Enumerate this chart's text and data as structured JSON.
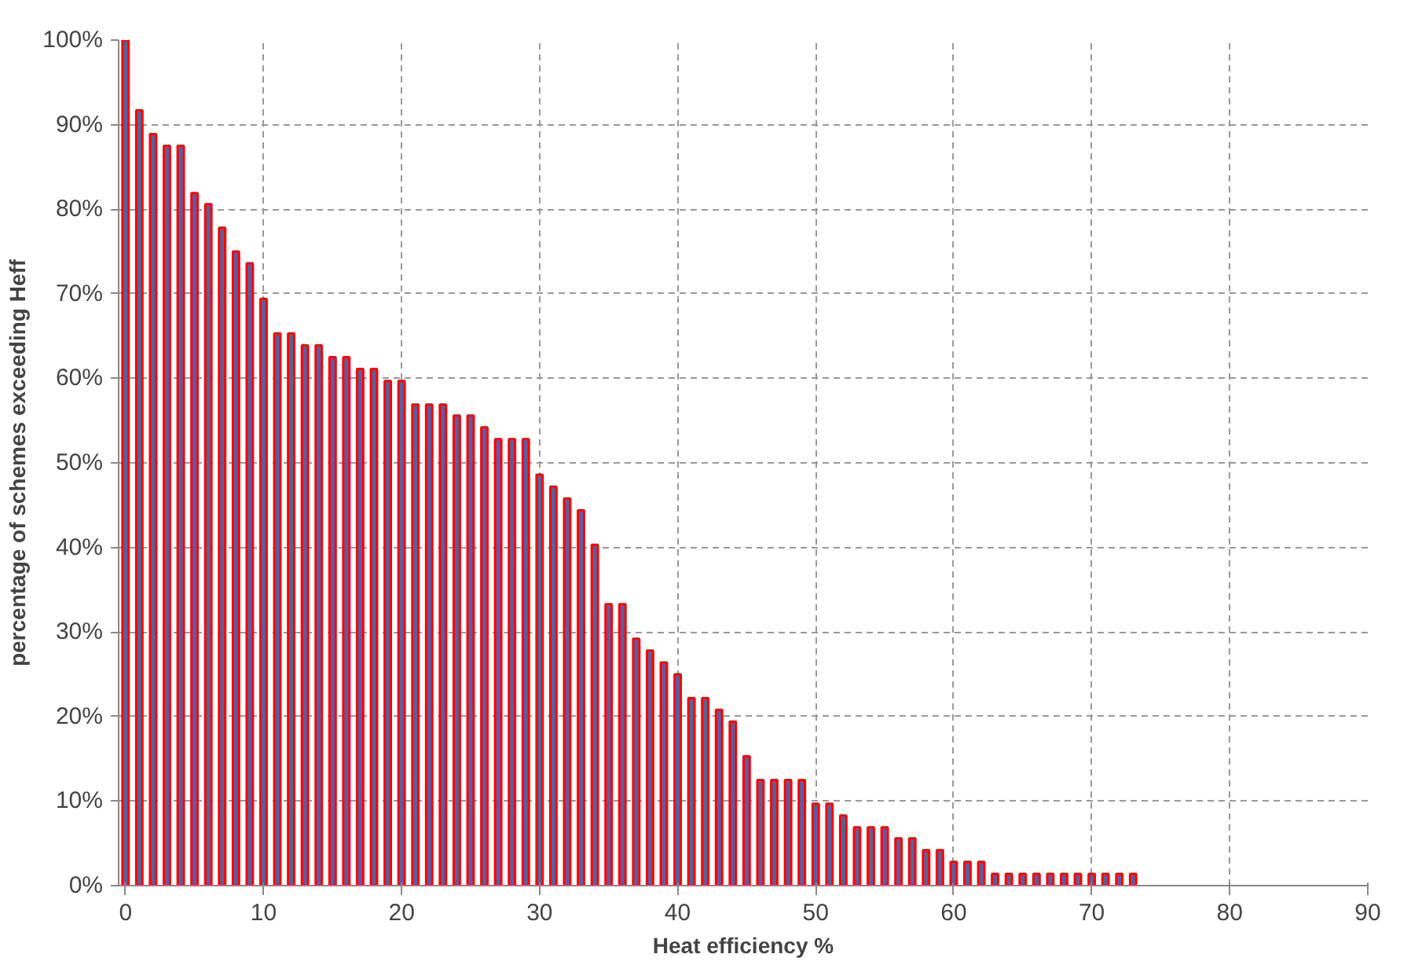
{
  "chart_data": {
    "type": "bar",
    "xlabel": "Heat efficiency %",
    "ylabel": "percentage of schemes exceeding Heff",
    "x": [
      0,
      1,
      2,
      3,
      4,
      5,
      6,
      7,
      8,
      9,
      10,
      11,
      12,
      13,
      14,
      15,
      16,
      17,
      18,
      19,
      20,
      21,
      22,
      23,
      24,
      25,
      26,
      27,
      28,
      29,
      30,
      31,
      32,
      33,
      34,
      35,
      36,
      37,
      38,
      39,
      40,
      41,
      42,
      43,
      44,
      45,
      46,
      47,
      48,
      49,
      50,
      51,
      52,
      53,
      54,
      55,
      56,
      57,
      58,
      59,
      60,
      61,
      62,
      63,
      64,
      65,
      66,
      67,
      68,
      69,
      70,
      71,
      72,
      73
    ],
    "values": [
      100,
      91.7,
      88.9,
      87.5,
      87.5,
      81.9,
      80.6,
      77.8,
      75,
      73.6,
      69.4,
      65.3,
      65.3,
      63.9,
      63.9,
      62.5,
      62.5,
      61.1,
      61.1,
      59.7,
      59.7,
      56.9,
      56.9,
      56.9,
      55.6,
      55.6,
      54.2,
      52.8,
      52.8,
      52.8,
      48.6,
      47.2,
      45.8,
      44.4,
      40.3,
      33.3,
      33.3,
      29.2,
      27.8,
      26.4,
      25,
      22.2,
      22.2,
      20.8,
      19.4,
      15.3,
      12.5,
      12.5,
      12.5,
      12.5,
      9.7,
      9.7,
      8.3,
      6.9,
      6.9,
      6.9,
      5.6,
      5.6,
      4.2,
      4.2,
      2.8,
      2.8,
      2.8,
      1.4,
      1.4,
      1.4,
      1.4,
      1.4,
      1.4,
      1.4,
      1.4,
      1.4,
      1.4,
      1.4
    ],
    "color": "#5a5fa0",
    "xlim": [
      -0.5,
      90
    ],
    "xticks": [
      0,
      10,
      20,
      30,
      40,
      50,
      60,
      70,
      80,
      90
    ],
    "ylim": [
      0,
      100
    ],
    "yticks": [
      {
        "value": 0,
        "label": "0%"
      },
      {
        "value": 10,
        "label": "10%"
      },
      {
        "value": 20,
        "label": "20%"
      },
      {
        "value": 30,
        "label": "30%"
      },
      {
        "value": 40,
        "label": "40%"
      },
      {
        "value": 50,
        "label": "50%"
      },
      {
        "value": 60,
        "label": "60%"
      },
      {
        "value": 70,
        "label": "70%"
      },
      {
        "value": 80,
        "label": "80%"
      },
      {
        "value": 90,
        "label": "90%"
      },
      {
        "value": 100,
        "label": "100%"
      }
    ],
    "grid": true,
    "line_style": "dashed"
  }
}
